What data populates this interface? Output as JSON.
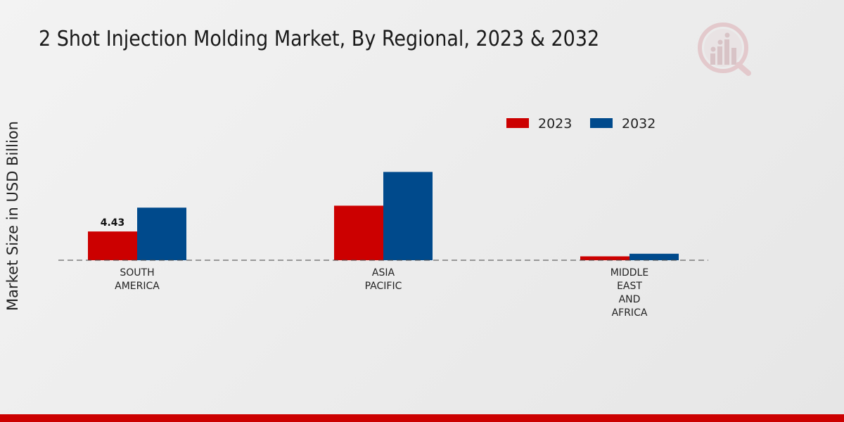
{
  "title": "2 Shot Injection Molding Market, By Regional, 2023 & 2032",
  "colors": {
    "s2023": "#cc0000",
    "s2032": "#004a8c",
    "accent_bar": "#cc0000"
  },
  "icons": {
    "logo": "market-research-logo-icon"
  },
  "chart_data": {
    "type": "bar",
    "title": "2 Shot Injection Molding Market, By Regional, 2023 & 2032",
    "xlabel": "",
    "ylabel": "Market Size in USD Billion",
    "categories": [
      "SOUTH\nAMERICA",
      "ASIA\nPACIFIC",
      "MIDDLE\nEAST\nAND\nAFRICA"
    ],
    "series": [
      {
        "name": "2023",
        "values": [
          4.43,
          8.4,
          0.6
        ]
      },
      {
        "name": "2032",
        "values": [
          8.1,
          13.6,
          1.0
        ]
      }
    ],
    "data_labels": [
      {
        "series": 0,
        "index": 0,
        "text": "4.43"
      }
    ],
    "ylim": [
      0,
      26
    ],
    "legend_position": "top-right",
    "grid": false
  }
}
